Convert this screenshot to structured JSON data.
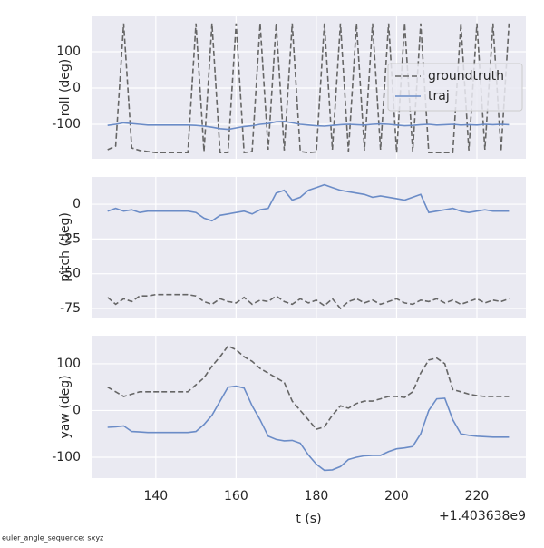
{
  "footnote": "euler_angle_sequence: sxyz",
  "chart_data": [
    {
      "type": "line",
      "ylabel": "roll (deg)",
      "xlim": [
        124,
        232.2
      ],
      "xticks": [
        140,
        160,
        180,
        200,
        220
      ],
      "ylim": [
        -195,
        197.5
      ],
      "yticks": [
        -100,
        0,
        100
      ],
      "grid": true,
      "legend": "upper right",
      "x": [
        128,
        130,
        132,
        134,
        136,
        138,
        140,
        142,
        144,
        146,
        148,
        150,
        152,
        154,
        156,
        158,
        160,
        162,
        164,
        166,
        168,
        170,
        172,
        174,
        176,
        178,
        180,
        182,
        184,
        186,
        188,
        190,
        192,
        194,
        196,
        198,
        200,
        202,
        204,
        206,
        208,
        210,
        212,
        214,
        216,
        218,
        220,
        222,
        224,
        226,
        228
      ],
      "series": [
        {
          "name": "groundtruth",
          "color": "#666666",
          "dash": true,
          "values": [
            -170,
            -160,
            178,
            -165,
            -172,
            -175,
            -178,
            -178,
            -178,
            -178,
            -178,
            178,
            -175,
            178,
            -178,
            -178,
            178,
            -178,
            -175,
            178,
            -170,
            178,
            -172,
            178,
            -175,
            -178,
            -176,
            178,
            -170,
            178,
            -175,
            178,
            -172,
            178,
            -170,
            178,
            -178,
            178,
            -175,
            178,
            -178,
            -178,
            -178,
            -178,
            178,
            -172,
            178,
            -170,
            178,
            -175,
            178
          ]
        },
        {
          "name": "traj",
          "color": "#6b8cc7",
          "dash": false,
          "values": [
            -103,
            -100,
            -96,
            -98,
            -100,
            -102,
            -102,
            -102,
            -102,
            -102,
            -102,
            -103,
            -105,
            -108,
            -112,
            -114,
            -110,
            -106,
            -104,
            -100,
            -98,
            -93,
            -92,
            -96,
            -100,
            -102,
            -104,
            -105,
            -103,
            -101,
            -100,
            -101,
            -102,
            -100,
            -99,
            -100,
            -102,
            -104,
            -103,
            -101,
            -100,
            -102,
            -101,
            -100,
            -102,
            -101,
            -102,
            -100,
            -101,
            -100,
            -101
          ]
        }
      ]
    },
    {
      "type": "line",
      "ylabel": "pitch (deg)",
      "xlim": [
        124,
        232.2
      ],
      "xticks": [
        140,
        160,
        180,
        200,
        220
      ],
      "ylim": [
        -81.5,
        19.6
      ],
      "yticks": [
        -75,
        -50,
        -25,
        0
      ],
      "grid": true,
      "x": [
        128,
        130,
        132,
        134,
        136,
        138,
        140,
        142,
        144,
        146,
        148,
        150,
        152,
        154,
        156,
        158,
        160,
        162,
        164,
        166,
        168,
        170,
        172,
        174,
        176,
        178,
        180,
        182,
        184,
        186,
        188,
        190,
        192,
        194,
        196,
        198,
        200,
        202,
        204,
        206,
        208,
        210,
        212,
        214,
        216,
        218,
        220,
        222,
        224,
        226,
        228
      ],
      "series": [
        {
          "name": "groundtruth",
          "color": "#666666",
          "dash": true,
          "values": [
            -67,
            -72,
            -68,
            -70,
            -66,
            -66,
            -65,
            -65,
            -65,
            -65,
            -65,
            -66,
            -70,
            -72,
            -68,
            -70,
            -71,
            -67,
            -72,
            -69,
            -70,
            -66,
            -70,
            -72,
            -68,
            -71,
            -69,
            -73,
            -68,
            -75,
            -70,
            -68,
            -71,
            -69,
            -72,
            -70,
            -68,
            -71,
            -72,
            -69,
            -70,
            -68,
            -71,
            -69,
            -72,
            -70,
            -68,
            -71,
            -69,
            -70,
            -68
          ]
        },
        {
          "name": "traj",
          "color": "#6b8cc7",
          "dash": false,
          "values": [
            -5,
            -3,
            -5,
            -4,
            -6,
            -5,
            -5,
            -5,
            -5,
            -5,
            -5,
            -6,
            -10,
            -12,
            -8,
            -7,
            -6,
            -5,
            -7,
            -4,
            -3,
            8,
            10,
            3,
            5,
            10,
            12,
            14,
            12,
            10,
            9,
            8,
            7,
            5,
            6,
            5,
            4,
            3,
            5,
            7,
            -6,
            -5,
            -4,
            -3,
            -5,
            -6,
            -5,
            -4,
            -5,
            -5,
            -5
          ]
        }
      ]
    },
    {
      "type": "line",
      "ylabel": "yaw (deg)",
      "xlabel": "t (s)",
      "x_offset": "+1.403638e9",
      "xlim": [
        124,
        232.2
      ],
      "xticks": [
        140,
        160,
        180,
        200,
        220
      ],
      "ylim": [
        -144.7,
        160
      ],
      "yticks": [
        -100,
        0,
        100
      ],
      "grid": true,
      "x": [
        128,
        130,
        132,
        134,
        136,
        138,
        140,
        142,
        144,
        146,
        148,
        150,
        152,
        154,
        156,
        158,
        160,
        162,
        164,
        166,
        168,
        170,
        172,
        174,
        176,
        178,
        180,
        182,
        184,
        186,
        188,
        190,
        192,
        194,
        196,
        198,
        200,
        202,
        204,
        206,
        208,
        210,
        212,
        214,
        216,
        218,
        220,
        222,
        224,
        226,
        228
      ],
      "series": [
        {
          "name": "groundtruth",
          "color": "#666666",
          "dash": true,
          "values": [
            50,
            40,
            30,
            35,
            40,
            40,
            40,
            40,
            40,
            40,
            40,
            55,
            70,
            95,
            115,
            138,
            130,
            115,
            105,
            90,
            80,
            70,
            60,
            20,
            0,
            -20,
            -40,
            -35,
            -10,
            10,
            5,
            15,
            20,
            20,
            25,
            30,
            30,
            28,
            40,
            80,
            108,
            112,
            100,
            45,
            40,
            35,
            32,
            30,
            30,
            30,
            30
          ]
        },
        {
          "name": "traj",
          "color": "#6b8cc7",
          "dash": false,
          "values": [
            -36,
            -35,
            -33,
            -45,
            -46,
            -47,
            -47,
            -47,
            -47,
            -47,
            -47,
            -45,
            -30,
            -10,
            20,
            50,
            52,
            48,
            10,
            -20,
            -55,
            -62,
            -65,
            -64,
            -70,
            -95,
            -115,
            -128,
            -127,
            -120,
            -105,
            -100,
            -97,
            -96,
            -96,
            -88,
            -82,
            -80,
            -77,
            -50,
            0,
            25,
            26,
            -20,
            -50,
            -53,
            -55,
            -56,
            -57,
            -57,
            -57
          ]
        }
      ]
    }
  ]
}
